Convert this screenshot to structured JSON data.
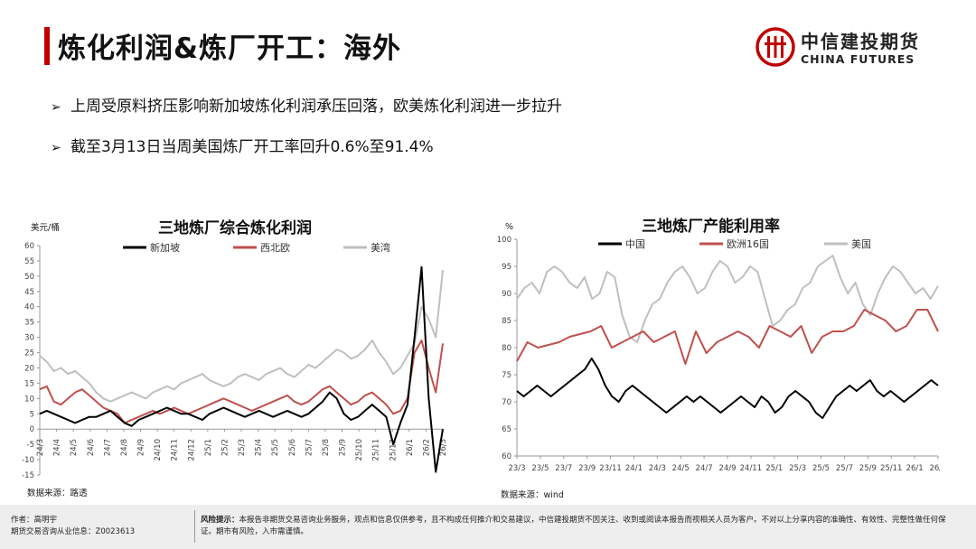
{
  "slide": {
    "title": "炼化利润&炼厂开工：海外",
    "bullets": [
      "上周受原料挤压影响新加坡炼化利润承压回落，欧美炼化利润进一步拉升",
      "截至3月13日当周美国炼厂开工率回升0.6%至91.4%"
    ],
    "bullet_icon": "arrow-bullet-icon"
  },
  "logo": {
    "cn": "中信建投期货",
    "en": "CHINA FUTURES",
    "icon": "china-futures-logo-icon",
    "color": "#c00000"
  },
  "colors": {
    "accent": "#c00000",
    "black": "#000000",
    "red": "#c0504d",
    "gray": "#bfbfbf"
  },
  "chart_data": [
    {
      "type": "line",
      "title": "三地炼厂综合炼化利润",
      "ylabel": "美元/桶",
      "source": "数据来源：路透",
      "ylim": [
        -15,
        60
      ],
      "yticks": [
        -15,
        -10,
        -5,
        0,
        5,
        10,
        15,
        20,
        25,
        30,
        35,
        40,
        45,
        50,
        55,
        60
      ],
      "xticks": [
        "24/3",
        "24/4",
        "24/5",
        "24/6",
        "24/7",
        "24/8",
        "24/9",
        "24/10",
        "24/11",
        "24/12",
        "25/1",
        "25/2",
        "25/3",
        "25/4",
        "25/5",
        "25/6",
        "25/7",
        "25/8",
        "25/9",
        "25/10",
        "25/11",
        "25/12",
        "26/1",
        "26/2",
        "26/3"
      ],
      "grid": false,
      "legend_position": "top",
      "series": [
        {
          "name": "新加坡",
          "color": "#000000",
          "values": [
            5,
            6,
            5,
            4,
            3,
            2,
            3,
            4,
            4,
            5,
            6,
            4,
            2,
            1,
            3,
            4,
            5,
            6,
            7,
            6,
            5,
            5,
            4,
            3,
            5,
            6,
            7,
            6,
            5,
            4,
            5,
            6,
            5,
            4,
            5,
            6,
            5,
            4,
            5,
            7,
            9,
            12,
            10,
            5,
            3,
            4,
            6,
            8,
            6,
            4,
            -5,
            2,
            8,
            30,
            53,
            10,
            -14,
            0
          ]
        },
        {
          "name": "西北欧",
          "color": "#c0504d",
          "values": [
            13,
            14,
            9,
            8,
            10,
            12,
            13,
            11,
            9,
            7,
            6,
            5,
            2,
            3,
            4,
            5,
            6,
            5,
            6,
            7,
            6,
            5,
            6,
            7,
            8,
            9,
            10,
            9,
            8,
            7,
            6,
            7,
            8,
            9,
            10,
            11,
            9,
            8,
            9,
            11,
            13,
            14,
            12,
            10,
            8,
            9,
            11,
            12,
            10,
            8,
            5,
            6,
            10,
            25,
            29,
            20,
            12,
            28
          ]
        },
        {
          "name": "美湾",
          "color": "#bfbfbf",
          "values": [
            24,
            22,
            19,
            20,
            18,
            19,
            17,
            15,
            12,
            10,
            9,
            10,
            11,
            12,
            11,
            10,
            12,
            13,
            14,
            13,
            15,
            16,
            17,
            18,
            16,
            15,
            14,
            15,
            17,
            18,
            17,
            16,
            18,
            19,
            20,
            18,
            17,
            19,
            21,
            20,
            22,
            24,
            26,
            25,
            23,
            24,
            26,
            29,
            25,
            22,
            18,
            20,
            24,
            28,
            40,
            36,
            30,
            52
          ]
        }
      ]
    },
    {
      "type": "line",
      "title": "三地炼厂产能利用率",
      "ylabel": "%",
      "source": "数据来源：wind",
      "ylim": [
        60,
        100
      ],
      "yticks": [
        60,
        65,
        70,
        75,
        80,
        85,
        90,
        95,
        100
      ],
      "xticks": [
        "23/3",
        "23/5",
        "23/7",
        "23/9",
        "23/11",
        "24/1",
        "24/3",
        "24/5",
        "24/7",
        "24/9",
        "24/11",
        "25/1",
        "25/3",
        "25/5",
        "25/7",
        "25/9",
        "25/11",
        "26/1",
        "26/3"
      ],
      "grid": false,
      "legend_position": "top",
      "series": [
        {
          "name": "中国",
          "color": "#000000",
          "values": [
            72,
            71,
            72,
            73,
            72,
            71,
            72,
            73,
            74,
            75,
            76,
            78,
            76,
            73,
            71,
            70,
            72,
            73,
            72,
            71,
            70,
            69,
            68,
            69,
            70,
            71,
            70,
            71,
            70,
            69,
            68,
            69,
            70,
            71,
            70,
            69,
            71,
            70,
            68,
            69,
            71,
            72,
            71,
            70,
            68,
            67,
            69,
            71,
            72,
            73,
            72,
            73,
            74,
            72,
            71,
            72,
            71,
            70,
            71,
            72,
            73,
            74,
            73
          ]
        },
        {
          "name": "欧洲16国",
          "color": "#c0504d",
          "values": [
            77.5,
            81,
            80,
            80.5,
            81,
            82,
            82.5,
            83,
            84,
            80,
            81,
            82,
            83,
            81,
            82,
            83,
            77,
            83,
            79,
            81,
            82,
            83,
            82,
            80,
            84,
            83,
            82,
            84,
            79,
            82,
            83,
            83,
            84,
            87,
            86,
            85,
            83,
            84,
            87,
            87,
            83
          ]
        },
        {
          "name": "美国",
          "color": "#bfbfbf",
          "values": [
            89,
            91,
            92,
            90,
            94,
            95,
            94,
            92,
            91,
            93,
            89,
            90,
            94,
            93,
            86,
            82,
            81,
            85,
            88,
            89,
            92,
            94,
            95,
            93,
            90,
            91,
            94,
            96,
            95,
            92,
            93,
            95,
            94,
            89,
            84,
            85,
            87,
            88,
            91,
            92,
            95,
            96,
            97,
            93,
            90,
            92,
            88,
            86,
            90,
            93,
            95,
            94,
            92,
            90,
            91,
            89,
            91.4
          ]
        }
      ]
    }
  ],
  "footer": {
    "author": "作者：高明宇",
    "license": "期货交易咨询从业信息：Z0023613",
    "risk_label": "风险提示：",
    "risk_text": "本报告非期货交易咨询业务服务，观点和信息仅供参考，且不构成任何推介和交易建议，中信建投期货不因关注、收到或阅读本报告而视相关人员为客户。不对以上分享内容的准确性、有效性、完整性做任何保证。期市有风险，入市需谨慎。"
  }
}
